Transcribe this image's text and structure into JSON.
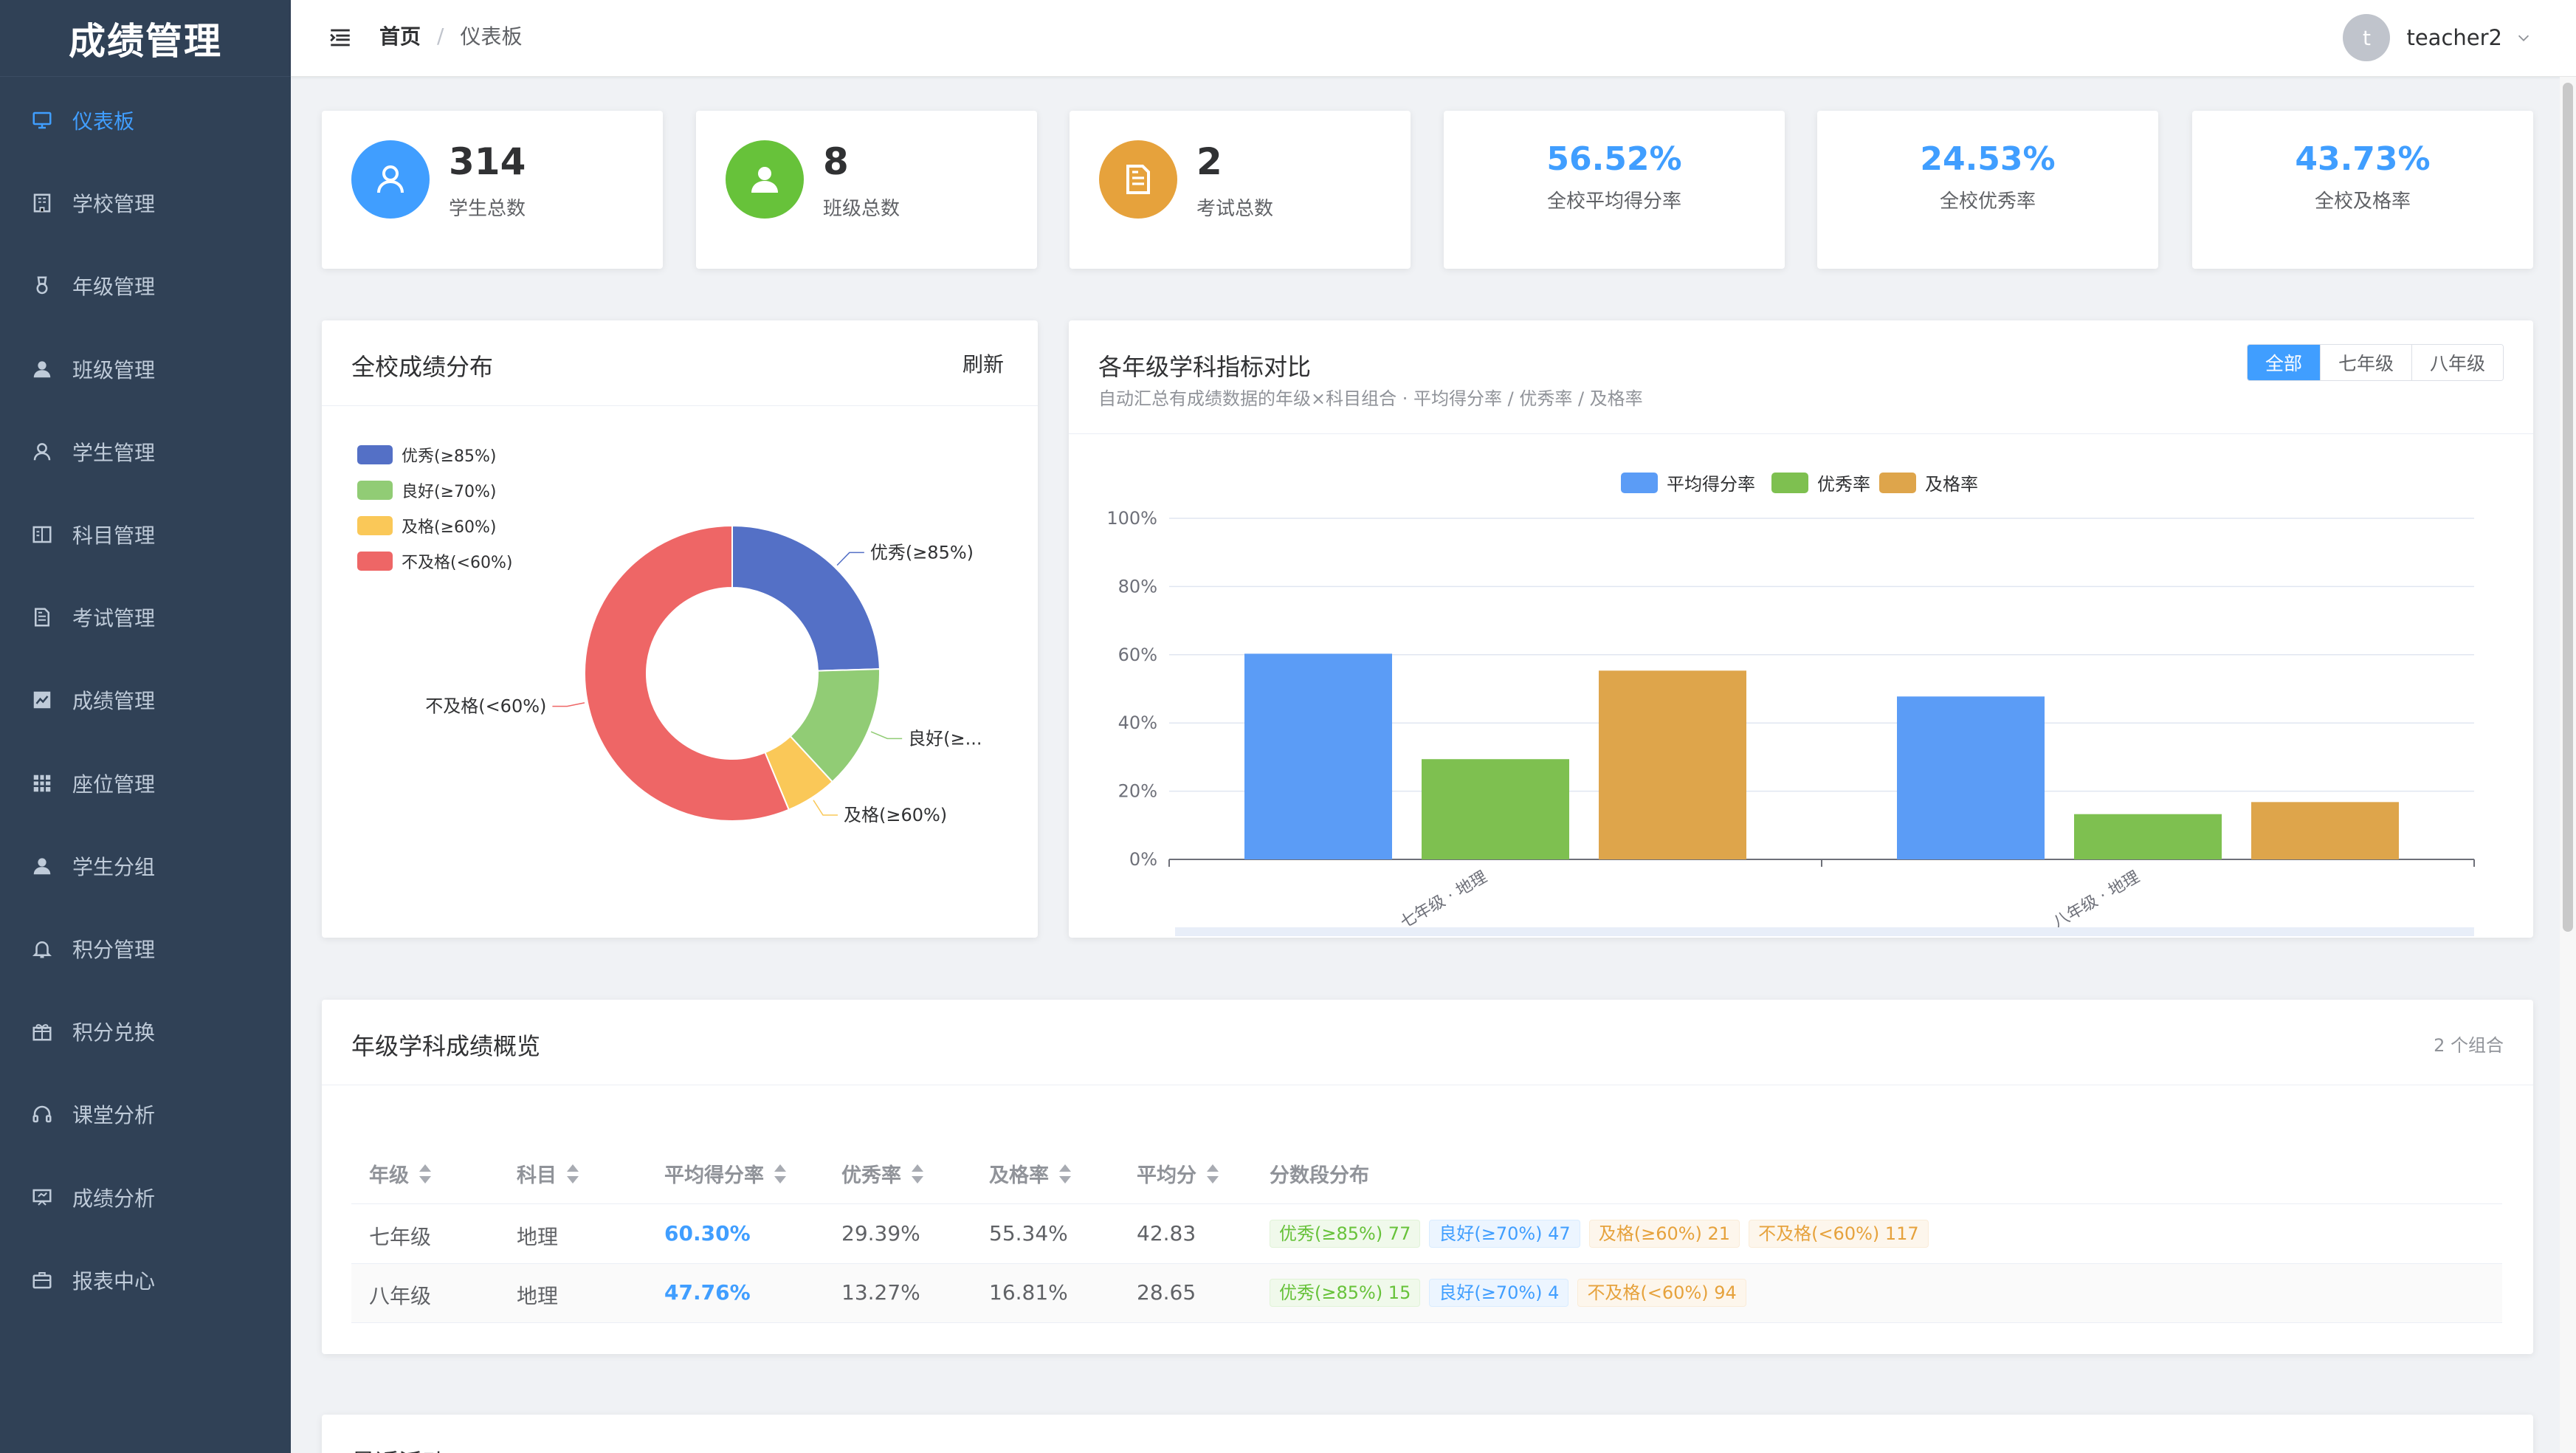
{
  "app": {
    "logo": "成绩管理"
  },
  "sidebar": {
    "items": [
      {
        "label": "仪表板",
        "icon": "monitor-icon",
        "active": true
      },
      {
        "label": "学校管理",
        "icon": "office-building-icon"
      },
      {
        "label": "年级管理",
        "icon": "medal-icon"
      },
      {
        "label": "班级管理",
        "icon": "user-filled-icon"
      },
      {
        "label": "学生管理",
        "icon": "user-icon"
      },
      {
        "label": "科目管理",
        "icon": "notebook-icon"
      },
      {
        "label": "考试管理",
        "icon": "document-icon"
      },
      {
        "label": "成绩管理",
        "icon": "trend-charts-icon"
      },
      {
        "label": "座位管理",
        "icon": "grid-icon"
      },
      {
        "label": "学生分组",
        "icon": "user-group-icon"
      },
      {
        "label": "积分管理",
        "icon": "bell-icon"
      },
      {
        "label": "积分兑换",
        "icon": "present-icon"
      },
      {
        "label": "课堂分析",
        "icon": "headset-icon"
      },
      {
        "label": "成绩分析",
        "icon": "data-board-icon"
      },
      {
        "label": "报表中心",
        "icon": "briefcase-icon"
      }
    ]
  },
  "header": {
    "breadcrumb": {
      "home": "首页",
      "separator": "/",
      "current": "仪表板"
    },
    "user": {
      "avatar_initial": "t",
      "name": "teacher2"
    }
  },
  "stats": [
    {
      "value": "314",
      "label": "学生总数",
      "color": "#409eff",
      "icon": "user-icon"
    },
    {
      "value": "8",
      "label": "班级总数",
      "color": "#67c23a",
      "icon": "user-filled-icon"
    },
    {
      "value": "2",
      "label": "考试总数",
      "color": "#e6a23c",
      "icon": "document-icon"
    }
  ],
  "rates": [
    {
      "value": "56.52%",
      "label": "全校平均得分率"
    },
    {
      "value": "24.53%",
      "label": "全校优秀率"
    },
    {
      "value": "43.73%",
      "label": "全校及格率"
    }
  ],
  "pie_panel": {
    "title": "全校成绩分布",
    "refresh": "刷新"
  },
  "bar_panel": {
    "title": "各年级学科指标对比",
    "subtitle": "自动汇总有成绩数据的年级×科目组合 · 平均得分率 / 优秀率 / 及格率",
    "filters": [
      "全部",
      "七年级",
      "八年级"
    ]
  },
  "chart_data": [
    {
      "type": "pie",
      "style": "donut",
      "labels": [
        "优秀(≥85%)",
        "良好(≥70%)",
        "及格(≥60%)",
        "不及格(<60%)"
      ],
      "callout_labels": [
        "优秀(≥85%)",
        "良好(≥...",
        "及格(≥60%)",
        "不及格(<60%)"
      ],
      "values": [
        92,
        51,
        21,
        211
      ],
      "colors": [
        "#5470c6",
        "#91cc75",
        "#fac858",
        "#ee6666"
      ],
      "legend": "top-left"
    },
    {
      "type": "bar",
      "categories": [
        "七年级 · 地理",
        "八年级 · 地理"
      ],
      "series": [
        {
          "name": "平均得分率",
          "values": [
            60.3,
            47.76
          ],
          "color": "#5b9cf6"
        },
        {
          "name": "优秀率",
          "values": [
            29.39,
            13.27
          ],
          "color": "#7ec050"
        },
        {
          "name": "及格率",
          "values": [
            55.34,
            16.81
          ],
          "color": "#dea54b"
        }
      ],
      "yticks": [
        "0%",
        "20%",
        "40%",
        "60%",
        "80%",
        "100%"
      ],
      "ylim": [
        0,
        100
      ],
      "legend": "top-center",
      "grid": true
    }
  ],
  "table_panel": {
    "title": "年级学科成绩概览",
    "count": "2 个组合",
    "headers": [
      "年级",
      "科目",
      "平均得分率",
      "优秀率",
      "及格率",
      "平均分",
      "分数段分布"
    ],
    "rows": [
      {
        "grade": "七年级",
        "subject": "地理",
        "avg_rate": "60.30%",
        "excellent": "29.39%",
        "pass": "55.34%",
        "avg": "42.83",
        "tags": [
          {
            "text": "优秀(≥85%) 77",
            "kind": "g"
          },
          {
            "text": "良好(≥70%) 47",
            "kind": "b"
          },
          {
            "text": "及格(≥60%) 21",
            "kind": "o"
          },
          {
            "text": "不及格(<60%) 117",
            "kind": "o"
          }
        ]
      },
      {
        "grade": "八年级",
        "subject": "地理",
        "avg_rate": "47.76%",
        "excellent": "13.27%",
        "pass": "16.81%",
        "avg": "28.65",
        "tags": [
          {
            "text": "优秀(≥85%) 15",
            "kind": "g"
          },
          {
            "text": "良好(≥70%) 4",
            "kind": "b"
          },
          {
            "text": "不及格(<60%) 94",
            "kind": "o"
          }
        ]
      }
    ]
  },
  "activity_panel": {
    "title": "最近活动"
  }
}
